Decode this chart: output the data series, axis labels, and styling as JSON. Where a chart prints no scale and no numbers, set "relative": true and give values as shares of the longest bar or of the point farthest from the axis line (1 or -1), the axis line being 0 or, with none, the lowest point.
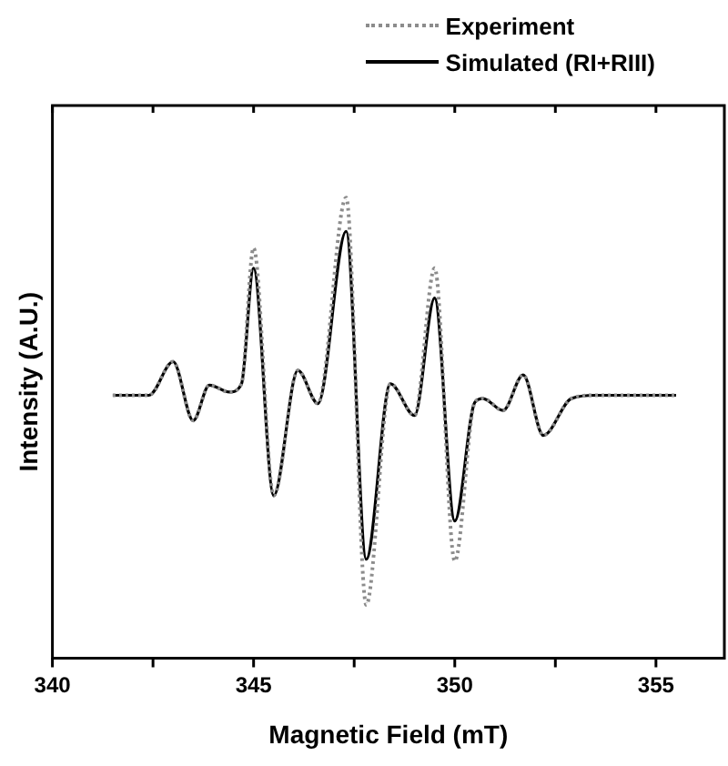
{
  "chart_data": {
    "type": "line",
    "xlabel": "Magnetic Field (mT)",
    "ylabel": "Intensity (A.U.)",
    "relative": true,
    "x": [
      341.5,
      342.4,
      343.0,
      343.5,
      343.9,
      344.4,
      344.7,
      345.0,
      345.5,
      346.1,
      346.6,
      347.3,
      347.8,
      348.4,
      349.0,
      349.5,
      350.0,
      350.5,
      350.7,
      351.2,
      351.7,
      352.2,
      352.9,
      353.5,
      355.5
    ],
    "series": [
      {
        "name": "Experiment",
        "color": "#8c8c8c",
        "line_style": "dotted",
        "values": [
          0.571,
          0.571,
          0.644,
          0.516,
          0.593,
          0.578,
          0.596,
          0.891,
          0.353,
          0.625,
          0.553,
          1,
          0.116,
          0.596,
          0.527,
          0.847,
          0.211,
          0.556,
          0.564,
          0.538,
          0.615,
          0.484,
          0.564,
          0.571,
          0.571
        ]
      },
      {
        "name": "Simulated (RI+RIII)",
        "color": "#000000",
        "line_style": "solid",
        "values": [
          0.571,
          0.571,
          0.644,
          0.516,
          0.593,
          0.578,
          0.596,
          0.847,
          0.353,
          0.625,
          0.553,
          0.927,
          0.215,
          0.596,
          0.527,
          0.782,
          0.298,
          0.556,
          0.564,
          0.538,
          0.615,
          0.484,
          0.564,
          0.571,
          0.571
        ]
      }
    ],
    "xlim": [
      340,
      356.7
    ],
    "xticks": [
      340,
      {
        "value": 342.5,
        "label": null
      },
      345,
      {
        "value": 347.5,
        "label": null
      },
      350,
      {
        "value": 352.5,
        "label": null
      },
      355
    ],
    "grid": false,
    "legend": "top right",
    "marker": "none"
  }
}
